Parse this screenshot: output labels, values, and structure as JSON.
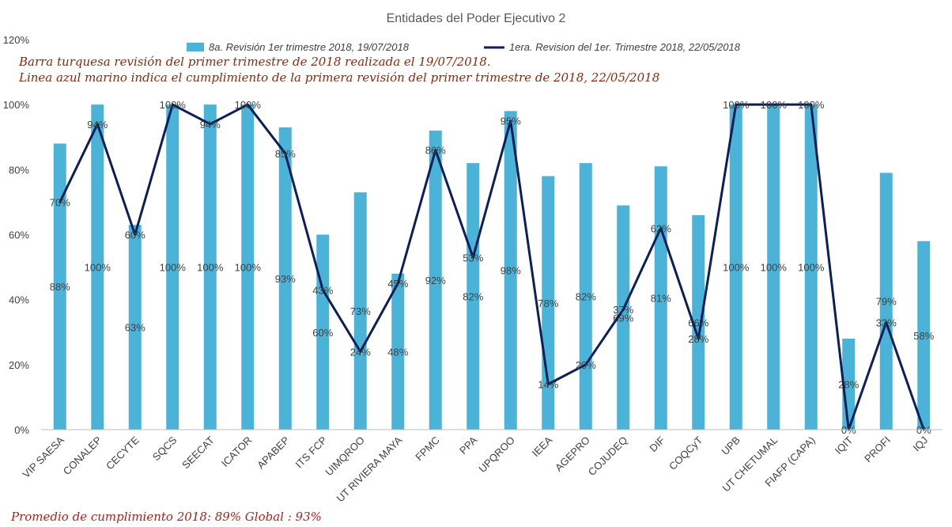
{
  "chart_data": {
    "type": "bar+line",
    "title": "Entidades del Poder Ejecutivo 2",
    "categories": [
      "VIP SAESA",
      "CONALEP",
      "CECYTE",
      "SQCS",
      "SEECAT",
      "ICATOR",
      "APABEP",
      "ITS FCP",
      "UIMQROO",
      "UT RIVIERA MAYA",
      "FPMC",
      "PPA",
      "UPQROO",
      "IEEA",
      "AGEPRO",
      "COJUDEQ",
      "DIF",
      "COQCyT",
      "UPB",
      "UT CHETUMAL",
      "FIAFP (CAPA)",
      "IQIT",
      "PROFI",
      "IQJ"
    ],
    "series": [
      {
        "name": "8a. Revisión 1er trimestre 2018, 19/07/2018",
        "type": "bar",
        "color": "#4bb3d8",
        "values": [
          88,
          100,
          63,
          100,
          100,
          100,
          93,
          60,
          73,
          48,
          92,
          82,
          98,
          78,
          82,
          69,
          81,
          66,
          100,
          100,
          100,
          28,
          79,
          58
        ]
      },
      {
        "name": "1era. Revision del 1er. Trimestre 2018, 22/05/2018",
        "type": "line",
        "color": "#0d1f5a",
        "values": [
          70,
          94,
          60,
          100,
          94,
          100,
          85,
          43,
          24,
          45,
          86,
          53,
          95,
          14,
          20,
          37,
          62,
          28,
          100,
          100,
          100,
          0,
          33,
          0
        ]
      }
    ],
    "yticks": [
      "0%",
      "20%",
      "40%",
      "60%",
      "80%",
      "100%",
      "120%"
    ],
    "ylim": [
      0,
      120
    ],
    "grid": false,
    "legend": "top"
  },
  "notes": {
    "line1": "Barra turquesa revisión del primer trimestre de 2018 realizada el 19/07/2018.",
    "line2": "Linea azul marino indica el cumplimiento de la primera revisión del primer trimestre de 2018,  22/05/2018"
  },
  "footer": {
    "text": "Promedio de cumplimiento 2018: 89%     Global : 93%"
  }
}
